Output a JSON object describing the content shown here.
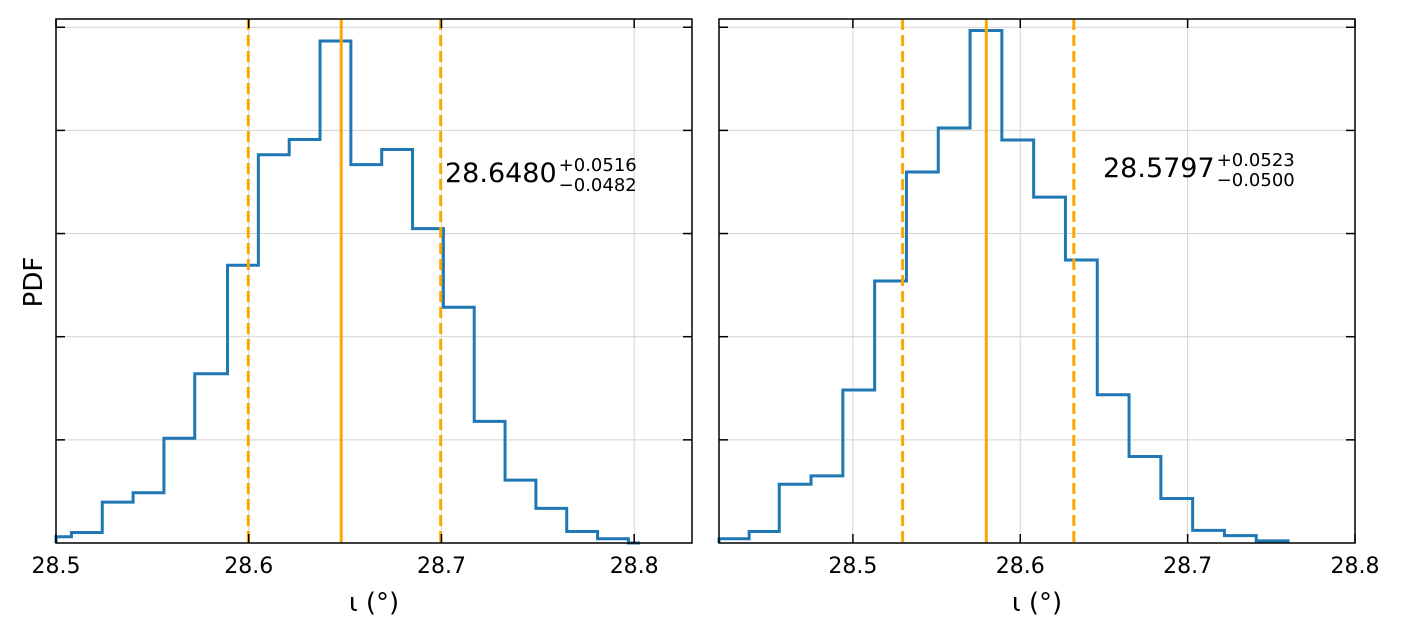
{
  "figure": {
    "ylabel_left": "PDF"
  },
  "colors": {
    "hist": "#1f77b4",
    "median": "#ffa500",
    "grid": "#d3d3d3",
    "axes": "#000000"
  },
  "chart_data": [
    {
      "type": "histogram",
      "xlabel": "ι (°)",
      "ylabel": "PDF",
      "xlim": [
        28.5,
        28.83
      ],
      "ylim": [
        0,
        1.0
      ],
      "xticks": [
        28.5,
        28.6,
        28.7,
        28.8
      ],
      "xtick_labels": [
        "28.5",
        "28.6",
        "28.7",
        "28.8"
      ],
      "grid": true,
      "median": 28.648,
      "lower_bound": 28.5998,
      "upper_bound": 28.6996,
      "annotation": {
        "value": "28.6480",
        "plus": "+0.0516",
        "minus": "−0.0482"
      },
      "bin_edges": [
        28.5,
        28.508,
        28.524,
        28.54,
        28.556,
        28.572,
        28.589,
        28.605,
        28.621,
        28.637,
        28.653,
        28.669,
        28.685,
        28.701,
        28.717,
        28.733,
        28.749,
        28.765,
        28.781,
        28.797,
        28.803
      ],
      "values": [
        0.012,
        0.02,
        0.078,
        0.096,
        0.2,
        0.323,
        0.53,
        0.741,
        0.77,
        0.958,
        0.722,
        0.751,
        0.6,
        0.45,
        0.232,
        0.12,
        0.066,
        0.022,
        0.008,
        0.0
      ]
    },
    {
      "type": "histogram",
      "xlabel": "ι (°)",
      "ylabel": "",
      "xlim": [
        28.42,
        28.8
      ],
      "ylim": [
        0,
        1.0
      ],
      "xticks": [
        28.5,
        28.6,
        28.7,
        28.8
      ],
      "xtick_labels": [
        "28.5",
        "28.6",
        "28.7",
        "28.8"
      ],
      "grid": true,
      "median": 28.5797,
      "lower_bound": 28.5297,
      "upper_bound": 28.632,
      "annotation": {
        "value": "28.5797",
        "plus": "+0.0523",
        "minus": "−0.0500"
      },
      "bin_edges": [
        28.42,
        28.438,
        28.456,
        28.475,
        28.494,
        28.513,
        28.532,
        28.551,
        28.57,
        28.589,
        28.608,
        28.627,
        28.646,
        28.665,
        28.684,
        28.703,
        28.722,
        28.741,
        28.76
      ],
      "values": [
        0.008,
        0.022,
        0.112,
        0.128,
        0.292,
        0.5,
        0.708,
        0.792,
        0.978,
        0.769,
        0.66,
        0.54,
        0.283,
        0.165,
        0.085,
        0.024,
        0.014,
        0.004
      ]
    }
  ]
}
